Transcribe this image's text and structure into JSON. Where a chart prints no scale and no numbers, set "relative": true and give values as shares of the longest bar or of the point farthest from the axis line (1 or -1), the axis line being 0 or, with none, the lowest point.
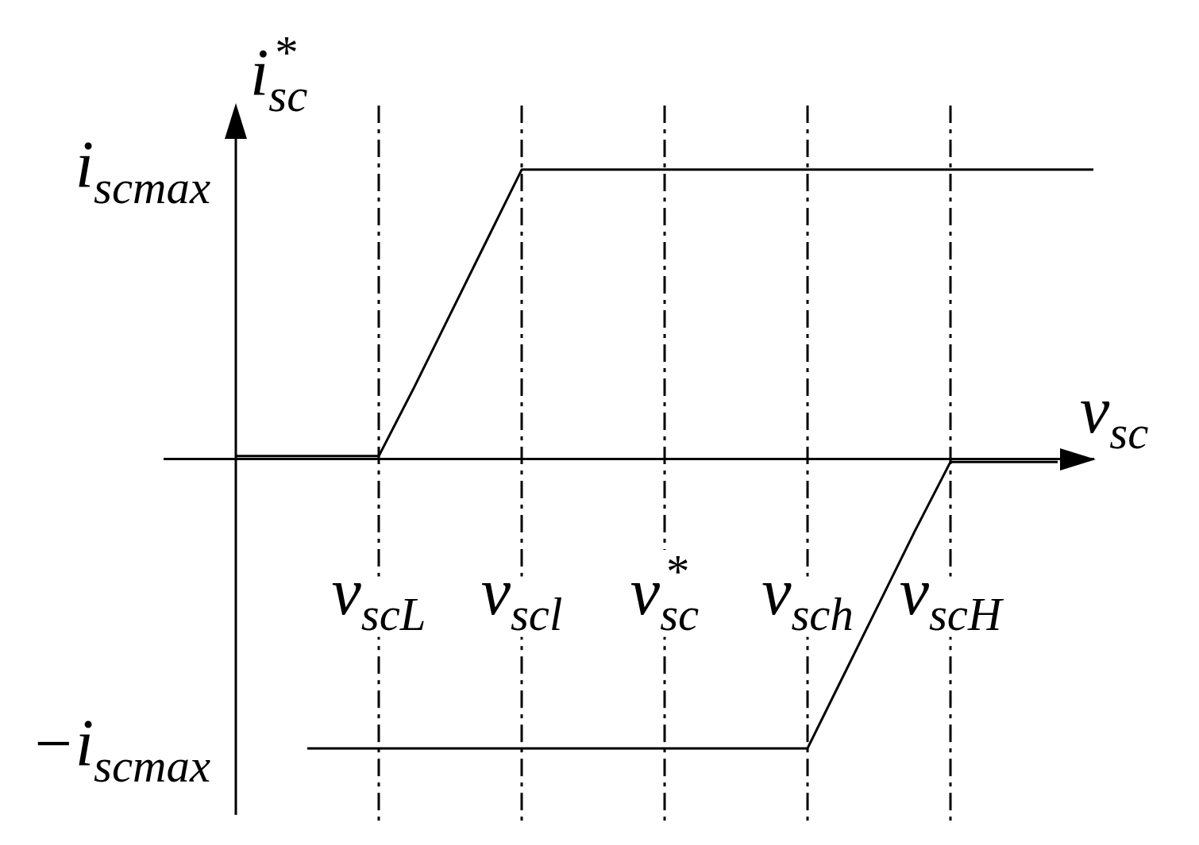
{
  "chart_data": {
    "type": "line",
    "relative": true,
    "xlabel": "v$_{sc}$",
    "ylabel": "i$^{*}$$_{sc}$",
    "categories": [
      null,
      null,
      null,
      null,
      "v$_{scL}$",
      null,
      null,
      null,
      "v$_{scl}$",
      null,
      null,
      null,
      "v$^{*}$$_{sc}$",
      null,
      null,
      null,
      "v$_{sch}$",
      null,
      null,
      null,
      "v$_{scH}$",
      null,
      null,
      null,
      null
    ],
    "annotations": [
      "i$_{scmax}$",
      "−i$_{scmax}$"
    ],
    "grid": "x",
    "marker": "none",
    "line_style": "solid",
    "series": [
      {
        "color": "#000000",
        "values": [
          0.01,
          0.01,
          0.01,
          0.01,
          0.01,
          0.25,
          0.5,
          0.75,
          1,
          1,
          1,
          1,
          1,
          1,
          1,
          1,
          1,
          1,
          1,
          1,
          1,
          1,
          1,
          1,
          1
        ]
      },
      {
        "color": "#000000",
        "values": [
          null,
          null,
          -1,
          -1,
          -1,
          -1,
          -1,
          -1,
          -1,
          -1,
          -1,
          -1,
          -1,
          -1,
          -1,
          -1,
          -1,
          -0.75,
          -0.5,
          -0.25,
          -0.01,
          -0.01,
          -0.01,
          -0.01,
          null
        ]
      }
    ]
  }
}
